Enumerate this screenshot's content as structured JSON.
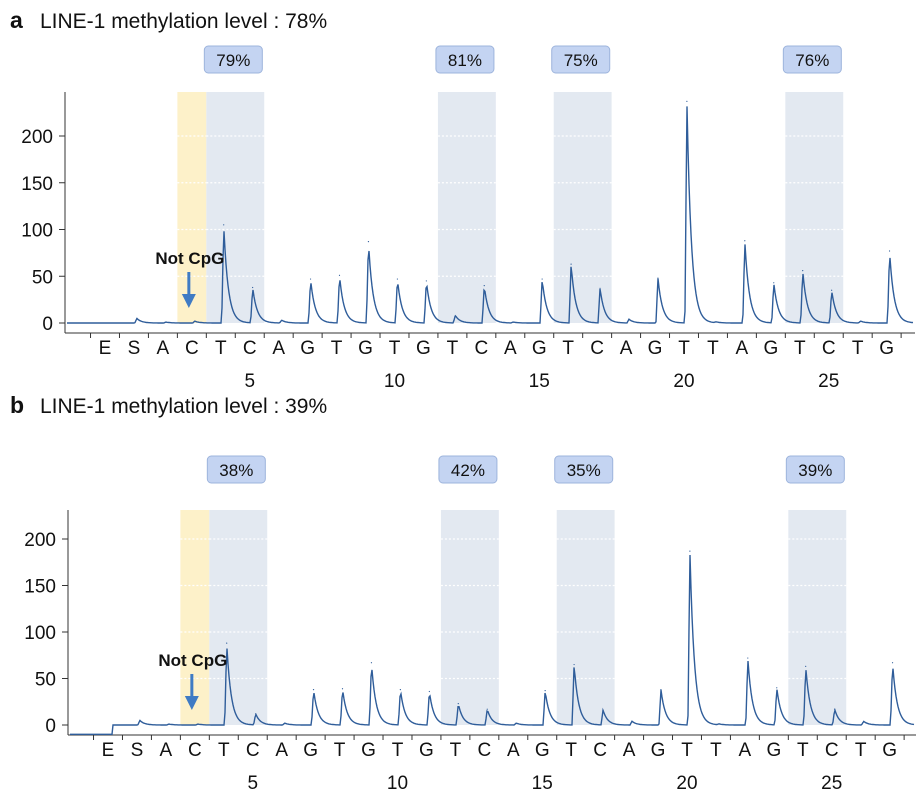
{
  "chart_data": [
    {
      "type": "line",
      "panel": "a",
      "title": "LINE-1 methylation level : 78%",
      "ylim": [
        0,
        240
      ],
      "yticks": [
        0,
        50,
        100,
        150,
        200
      ],
      "dispensation": [
        "E",
        "S",
        "A",
        "C",
        "T",
        "C",
        "A",
        "G",
        "T",
        "G",
        "T",
        "G",
        "T",
        "C",
        "A",
        "G",
        "T",
        "C",
        "A",
        "G",
        "T",
        "T",
        "A",
        "G",
        "T",
        "C",
        "T",
        "G"
      ],
      "position_ticks": [
        5,
        10,
        15,
        20,
        25
      ],
      "regions": [
        {
          "kind": "not-cpg",
          "from_index": 3,
          "to_index": 3
        },
        {
          "kind": "cpg",
          "from_index": 4,
          "to_index": 5,
          "label": "79%"
        },
        {
          "kind": "cpg",
          "from_index": 12,
          "to_index": 13,
          "label": "81%"
        },
        {
          "kind": "cpg",
          "from_index": 16,
          "to_index": 17,
          "label": "75%"
        },
        {
          "kind": "cpg",
          "from_index": 24,
          "to_index": 25,
          "label": "76%"
        }
      ],
      "annotation": {
        "text": "Not CpG",
        "index": 3
      },
      "baseline_start": 0,
      "peaks": [
        {
          "x": 1.1,
          "y": 5
        },
        {
          "x": 2.1,
          "y": 1
        },
        {
          "x": 3.1,
          "y": 2
        },
        {
          "x": 4.1,
          "y": 105
        },
        {
          "x": 5.1,
          "y": 38
        },
        {
          "x": 6.1,
          "y": 3
        },
        {
          "x": 7.1,
          "y": 47
        },
        {
          "x": 8.1,
          "y": 51
        },
        {
          "x": 9.1,
          "y": 87
        },
        {
          "x": 10.1,
          "y": 47
        },
        {
          "x": 11.1,
          "y": 45
        },
        {
          "x": 12.1,
          "y": 8
        },
        {
          "x": 13.1,
          "y": 40
        },
        {
          "x": 14.1,
          "y": 1
        },
        {
          "x": 15.1,
          "y": 47
        },
        {
          "x": 16.1,
          "y": 63
        },
        {
          "x": 17.1,
          "y": 37
        },
        {
          "x": 18.1,
          "y": 4
        },
        {
          "x": 19.1,
          "y": 48
        },
        {
          "x": 20.1,
          "y": 237
        },
        {
          "x": 21.1,
          "y": 1
        },
        {
          "x": 22.1,
          "y": 88
        },
        {
          "x": 23.1,
          "y": 43
        },
        {
          "x": 24.1,
          "y": 56
        },
        {
          "x": 25.1,
          "y": 35
        },
        {
          "x": 26.1,
          "y": 2
        },
        {
          "x": 27.1,
          "y": 77
        }
      ]
    },
    {
      "type": "line",
      "panel": "b",
      "title": "LINE-1 methylation level : 39%",
      "ylim": [
        0,
        240
      ],
      "yticks": [
        0,
        50,
        100,
        150,
        200
      ],
      "dispensation": [
        "E",
        "S",
        "A",
        "C",
        "T",
        "C",
        "A",
        "G",
        "T",
        "G",
        "T",
        "G",
        "T",
        "C",
        "A",
        "G",
        "T",
        "C",
        "A",
        "G",
        "T",
        "T",
        "A",
        "G",
        "T",
        "C",
        "T",
        "G"
      ],
      "position_ticks": [
        5,
        10,
        15,
        20,
        25
      ],
      "regions": [
        {
          "kind": "not-cpg",
          "from_index": 3,
          "to_index": 3
        },
        {
          "kind": "cpg",
          "from_index": 4,
          "to_index": 5,
          "label": "38%"
        },
        {
          "kind": "cpg",
          "from_index": 12,
          "to_index": 13,
          "label": "42%"
        },
        {
          "kind": "cpg",
          "from_index": 16,
          "to_index": 17,
          "label": "35%"
        },
        {
          "kind": "cpg",
          "from_index": 24,
          "to_index": 25,
          "label": "39%"
        }
      ],
      "annotation": {
        "text": "Not CpG",
        "index": 3
      },
      "baseline_start": -10,
      "peaks": [
        {
          "x": 1.1,
          "y": 5
        },
        {
          "x": 2.1,
          "y": 1
        },
        {
          "x": 3.1,
          "y": 1
        },
        {
          "x": 4.1,
          "y": 88
        },
        {
          "x": 5.1,
          "y": 12
        },
        {
          "x": 6.1,
          "y": 2
        },
        {
          "x": 7.1,
          "y": 38
        },
        {
          "x": 8.1,
          "y": 39
        },
        {
          "x": 9.1,
          "y": 67
        },
        {
          "x": 10.1,
          "y": 38
        },
        {
          "x": 11.1,
          "y": 36
        },
        {
          "x": 12.1,
          "y": 23
        },
        {
          "x": 13.1,
          "y": 17
        },
        {
          "x": 14.1,
          "y": 2
        },
        {
          "x": 15.1,
          "y": 37
        },
        {
          "x": 16.1,
          "y": 65
        },
        {
          "x": 17.1,
          "y": 16
        },
        {
          "x": 18.1,
          "y": 4
        },
        {
          "x": 19.1,
          "y": 38
        },
        {
          "x": 20.1,
          "y": 187
        },
        {
          "x": 21.1,
          "y": 1
        },
        {
          "x": 22.1,
          "y": 72
        },
        {
          "x": 23.1,
          "y": 40
        },
        {
          "x": 24.1,
          "y": 63
        },
        {
          "x": 25.1,
          "y": 17
        },
        {
          "x": 26.1,
          "y": 4
        },
        {
          "x": 27.1,
          "y": 67
        }
      ]
    }
  ],
  "colors": {
    "trace": "#2f5d9a",
    "cpg_band": "#e3e9f1",
    "not_cpg_band": "#fdf1c9",
    "label_box": "#c4d4f2",
    "label_border": "#9db4dc",
    "arrow": "#3f7bc4"
  }
}
